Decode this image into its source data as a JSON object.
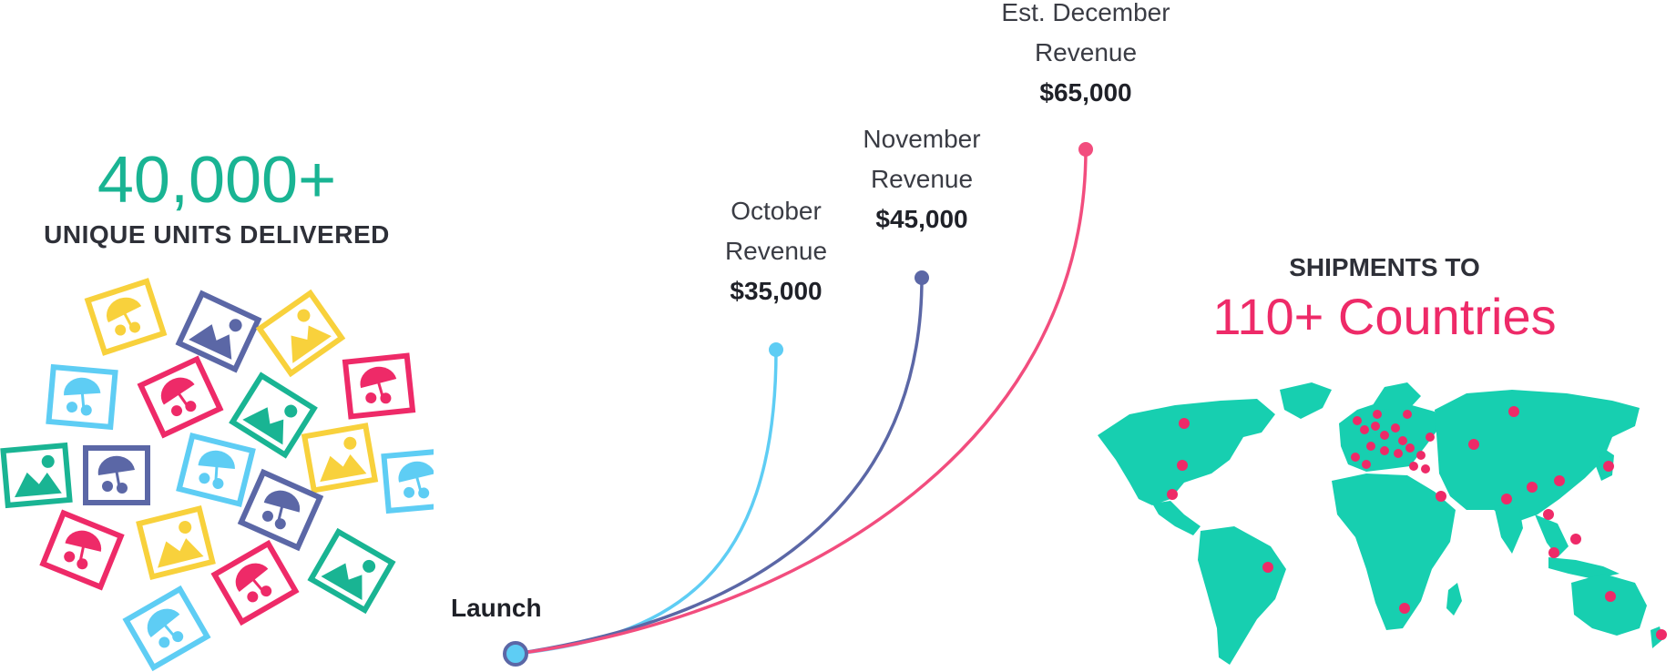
{
  "colors": {
    "teal": "#19b493",
    "pink": "#ee2a68",
    "sky": "#5ecdf4",
    "navy": "#5b67a6",
    "yellow": "#f8d13c",
    "map": "#17cfb0"
  },
  "stats": {
    "units_value": "40,000+",
    "units_label": "UNIQUE UNITS DELIVERED",
    "ship_label": "SHIPMENTS TO",
    "countries_value": "110+ Countries"
  },
  "timeline": {
    "launch_label": "Launch",
    "milestones": [
      {
        "line1": "October",
        "line2": "Revenue",
        "amount": "$35,000",
        "color": "#5ecdf4"
      },
      {
        "line1": "November",
        "line2": "Revenue",
        "amount": "$45,000",
        "color": "#5b67a6"
      },
      {
        "line1": "Est. December",
        "line2": "Revenue",
        "amount": "$65,000",
        "color": "#f24d7e"
      }
    ]
  },
  "icons": {
    "tile_types": [
      "landscape-photo-icon",
      "beach-umbrella-photo-icon"
    ]
  }
}
